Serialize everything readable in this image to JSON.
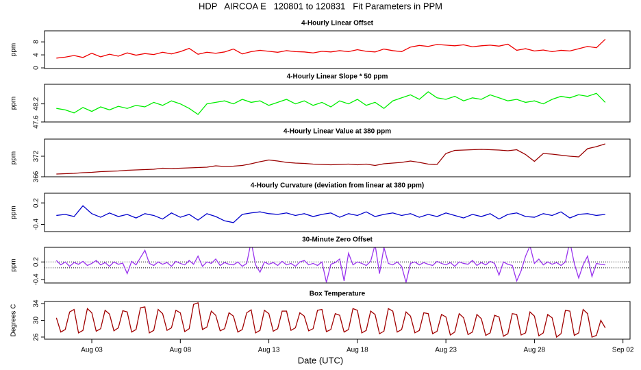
{
  "title": "HDP   AIRCOA E   120801 to 120831   Fit Parameters in PPM",
  "x_label": "Date (UTC)",
  "xlim": [
    0.33,
    33.4
  ],
  "xticks": [
    {
      "value": 3,
      "label": "Aug 03"
    },
    {
      "value": 8,
      "label": "Aug 08"
    },
    {
      "value": 13,
      "label": "Aug 13"
    },
    {
      "value": 18,
      "label": "Aug 18"
    },
    {
      "value": 23,
      "label": "Aug 23"
    },
    {
      "value": 28,
      "label": "Aug 28"
    },
    {
      "value": 33,
      "label": "Sep 02"
    }
  ],
  "chart_data": [
    {
      "type": "line",
      "title": "4-Hourly Linear Offset",
      "y_label": "ppm",
      "color": "#ee0000",
      "ylim": [
        -0.2,
        11.4
      ],
      "yticks": [
        0,
        4,
        8
      ],
      "x": [
        1,
        1.5,
        2,
        2.5,
        3,
        3.5,
        4,
        4.5,
        5,
        5.5,
        6,
        6.5,
        7,
        7.5,
        8,
        8.5,
        9,
        9.5,
        10,
        10.5,
        11,
        11.5,
        12,
        12.5,
        13,
        13.5,
        14,
        14.5,
        15,
        15.5,
        16,
        16.5,
        17,
        17.5,
        18,
        18.5,
        19,
        19.5,
        20,
        20.5,
        21,
        21.5,
        22,
        22.5,
        23,
        23.5,
        24,
        24.5,
        25,
        25.5,
        26,
        26.5,
        27,
        27.5,
        28,
        28.5,
        29,
        29.5,
        30,
        30.5,
        31,
        31.5,
        32
      ],
      "values": [
        3.0,
        3.3,
        3.8,
        3.2,
        4.5,
        3.4,
        4.2,
        3.6,
        4.6,
        3.9,
        4.4,
        4.1,
        4.8,
        4.3,
        5.0,
        6.0,
        4.2,
        4.8,
        4.5,
        4.9,
        5.8,
        4.3,
        5.0,
        5.4,
        5.1,
        4.8,
        5.3,
        5.0,
        4.9,
        4.6,
        5.1,
        4.9,
        5.3,
        5.0,
        5.6,
        5.1,
        4.9,
        5.8,
        5.3,
        5.0,
        6.4,
        6.9,
        6.6,
        7.2,
        7.0,
        6.8,
        7.1,
        6.5,
        6.8,
        7.0,
        6.7,
        7.3,
        5.4,
        5.9,
        5.2,
        5.5,
        5.0,
        5.4,
        5.2,
        5.9,
        6.6,
        6.2,
        8.8
      ]
    },
    {
      "type": "line",
      "title": "4-Hourly Linear Slope * 50 ppm",
      "y_label": "ppm",
      "color": "#00ee00",
      "ylim": [
        47.6,
        48.85
      ],
      "yticks": [
        47.6,
        48.2
      ],
      "x": [
        1,
        1.5,
        2,
        2.5,
        3,
        3.5,
        4,
        4.5,
        5,
        5.5,
        6,
        6.5,
        7,
        7.5,
        8,
        8.5,
        9,
        9.5,
        10,
        10.5,
        11,
        11.5,
        12,
        12.5,
        13,
        13.5,
        14,
        14.5,
        15,
        15.5,
        16,
        16.5,
        17,
        17.5,
        18,
        18.5,
        19,
        19.5,
        20,
        20.5,
        21,
        21.5,
        22,
        22.5,
        23,
        23.5,
        24,
        24.5,
        25,
        25.5,
        26,
        26.5,
        27,
        27.5,
        28,
        28.5,
        29,
        29.5,
        30,
        30.5,
        31,
        31.5,
        32
      ],
      "values": [
        48.05,
        48.0,
        47.9,
        48.08,
        47.95,
        48.1,
        48.0,
        48.12,
        48.05,
        48.15,
        48.1,
        48.25,
        48.15,
        48.3,
        48.2,
        48.05,
        47.85,
        48.2,
        48.25,
        48.3,
        48.2,
        48.35,
        48.25,
        48.3,
        48.15,
        48.25,
        48.35,
        48.2,
        48.3,
        48.15,
        48.25,
        48.1,
        48.3,
        48.2,
        48.35,
        48.15,
        48.25,
        48.05,
        48.3,
        48.4,
        48.5,
        48.35,
        48.6,
        48.4,
        48.35,
        48.45,
        48.3,
        48.4,
        48.35,
        48.5,
        48.4,
        48.3,
        48.35,
        48.25,
        48.3,
        48.2,
        48.35,
        48.45,
        48.4,
        48.5,
        48.45,
        48.55,
        48.25
      ]
    },
    {
      "type": "line",
      "title": "4-Hourly Linear Value at 380 ppm",
      "y_label": "ppm",
      "color": "#990000",
      "ylim": [
        366,
        377
      ],
      "yticks": [
        366,
        372
      ],
      "x": [
        1,
        1.5,
        2,
        2.5,
        3,
        3.5,
        4,
        4.5,
        5,
        5.5,
        6,
        6.5,
        7,
        7.5,
        8,
        8.5,
        9,
        9.5,
        10,
        10.5,
        11,
        11.5,
        12,
        12.5,
        13,
        13.5,
        14,
        14.5,
        15,
        15.5,
        16,
        16.5,
        17,
        17.5,
        18,
        18.5,
        19,
        19.5,
        20,
        20.5,
        21,
        21.5,
        22,
        22.5,
        23,
        23.5,
        24,
        24.5,
        25,
        25.5,
        26,
        26.5,
        27,
        27.5,
        28,
        28.5,
        29,
        29.5,
        30,
        30.5,
        31,
        31.5,
        32
      ],
      "values": [
        366.8,
        366.9,
        367.0,
        367.2,
        367.3,
        367.5,
        367.6,
        367.7,
        367.9,
        368.0,
        368.1,
        368.2,
        368.5,
        368.4,
        368.5,
        368.6,
        368.7,
        368.8,
        369.2,
        369.0,
        369.1,
        369.3,
        369.8,
        370.4,
        370.9,
        370.6,
        370.2,
        370.0,
        369.9,
        369.7,
        369.6,
        369.5,
        369.6,
        369.7,
        369.5,
        369.7,
        369.3,
        369.8,
        370.0,
        370.2,
        370.6,
        370.2,
        369.7,
        369.6,
        372.8,
        373.7,
        373.8,
        373.9,
        374.0,
        373.9,
        373.8,
        373.6,
        373.9,
        372.5,
        370.5,
        372.8,
        372.6,
        372.3,
        372.0,
        371.8,
        374.2,
        374.8,
        375.6
      ]
    },
    {
      "type": "line",
      "title": "4-Hourly Curvature (deviation from linear at 380 ppm)",
      "y_label": "ppm",
      "color": "#0000cc",
      "ylim": [
        -0.6,
        0.47
      ],
      "yticks": [
        -0.4,
        0.2
      ],
      "x": [
        1,
        1.5,
        2,
        2.5,
        3,
        3.5,
        4,
        4.5,
        5,
        5.5,
        6,
        6.5,
        7,
        7.5,
        8,
        8.5,
        9,
        9.5,
        10,
        10.5,
        11,
        11.5,
        12,
        12.5,
        13,
        13.5,
        14,
        14.5,
        15,
        15.5,
        16,
        16.5,
        17,
        17.5,
        18,
        18.5,
        19,
        19.5,
        20,
        20.5,
        21,
        21.5,
        22,
        22.5,
        23,
        23.5,
        24,
        24.5,
        25,
        25.5,
        26,
        26.5,
        27,
        27.5,
        28,
        28.5,
        29,
        29.5,
        30,
        30.5,
        31,
        31.5,
        32
      ],
      "values": [
        -0.15,
        -0.12,
        -0.18,
        0.12,
        -0.1,
        -0.2,
        -0.08,
        -0.18,
        -0.12,
        -0.22,
        -0.1,
        -0.15,
        -0.25,
        -0.08,
        -0.2,
        -0.12,
        -0.28,
        -0.1,
        -0.18,
        -0.3,
        -0.35,
        -0.12,
        -0.08,
        -0.05,
        -0.1,
        -0.12,
        -0.08,
        -0.15,
        -0.1,
        -0.18,
        -0.12,
        -0.08,
        -0.2,
        -0.1,
        -0.15,
        -0.05,
        -0.18,
        -0.12,
        -0.08,
        -0.15,
        -0.1,
        -0.2,
        -0.12,
        -0.18,
        -0.08,
        -0.15,
        -0.22,
        -0.12,
        -0.18,
        -0.1,
        -0.25,
        -0.12,
        -0.08,
        -0.18,
        -0.2,
        -0.1,
        -0.15,
        -0.05,
        -0.22,
        -0.12,
        -0.1,
        -0.15,
        -0.12
      ]
    },
    {
      "type": "line",
      "title": "30-Minute Zero Offset",
      "y_label": "ppm",
      "color": "#9933ee",
      "ylim": [
        -0.52,
        0.7
      ],
      "yticks": [
        -0.4,
        0.2
      ],
      "hlines": [
        0.2,
        0.0
      ],
      "x": [
        1,
        1.25,
        1.5,
        1.75,
        2,
        2.25,
        2.5,
        2.75,
        3,
        3.25,
        3.5,
        3.75,
        4,
        4.25,
        4.5,
        4.75,
        5,
        5.25,
        5.5,
        5.75,
        6,
        6.25,
        6.5,
        6.75,
        7,
        7.25,
        7.5,
        7.75,
        8,
        8.25,
        8.5,
        8.75,
        9,
        9.25,
        9.5,
        9.75,
        10,
        10.25,
        10.5,
        10.75,
        11,
        11.25,
        11.5,
        11.75,
        12,
        12.25,
        12.5,
        12.75,
        13,
        13.25,
        13.5,
        13.75,
        14,
        14.25,
        14.5,
        14.75,
        15,
        15.25,
        15.5,
        15.75,
        16,
        16.25,
        16.5,
        16.75,
        17,
        17.25,
        17.5,
        17.75,
        18,
        18.25,
        18.5,
        18.75,
        19,
        19.25,
        19.5,
        19.75,
        20,
        20.25,
        20.5,
        20.75,
        21,
        21.25,
        21.5,
        21.75,
        22,
        22.25,
        22.5,
        22.75,
        23,
        23.25,
        23.5,
        23.75,
        24,
        24.25,
        24.5,
        24.75,
        25,
        25.25,
        25.5,
        25.75,
        26,
        26.25,
        26.5,
        26.75,
        27,
        27.25,
        27.5,
        27.75,
        28,
        28.25,
        28.5,
        28.75,
        29,
        29.25,
        29.5,
        29.75,
        30,
        30.25,
        30.5,
        30.75,
        31,
        31.25,
        31.5,
        31.75,
        32
      ],
      "values": [
        0.25,
        0.1,
        0.2,
        0.05,
        0.18,
        0.12,
        0.22,
        0.08,
        0.15,
        0.25,
        0.1,
        0.18,
        0.05,
        0.2,
        0.12,
        0.16,
        -0.2,
        0.22,
        0.1,
        0.35,
        0.6,
        0.15,
        0.08,
        0.2,
        0.12,
        0.18,
        0.05,
        0.22,
        0.15,
        0.1,
        0.25,
        0.12,
        0.4,
        0.05,
        0.2,
        0.15,
        0.3,
        0.08,
        0.18,
        0.12,
        0.1,
        0.2,
        0.05,
        0.15,
        0.9,
        0.1,
        -0.15,
        0.2,
        0.12,
        0.18,
        0.08,
        0.22,
        0.1,
        0.15,
        0.05,
        0.2,
        0.25,
        0.1,
        0.15,
        0.08,
        0.2,
        -0.5,
        0.12,
        0.18,
        0.3,
        -0.45,
        0.5,
        0.1,
        0.2,
        0.15,
        0.08,
        0.22,
        0.8,
        -0.2,
        0.7,
        0.15,
        0.1,
        0.2,
        0.05,
        -0.5,
        0.15,
        0.2,
        0.1,
        0.18,
        0.12,
        0.08,
        0.22,
        0.15,
        0.1,
        0.18,
        0.05,
        0.2,
        0.15,
        0.12,
        0.25,
        0.08,
        0.18,
        0.1,
        0.22,
        0.15,
        -0.25,
        0.2,
        0.12,
        0.08,
        -0.45,
        -0.1,
        0.4,
        0.75,
        0.15,
        0.3,
        0.1,
        0.2,
        0.12,
        0.18,
        0.08,
        0.2,
        0.9,
        0.15,
        -0.35,
        0.1,
        0.4,
        -0.3,
        0.15,
        0.12,
        0.1
      ]
    },
    {
      "type": "line",
      "title": "Box Temperature",
      "y_label": "Degrees C",
      "color": "#a00000",
      "ylim": [
        25.5,
        34.5
      ],
      "yticks": [
        26,
        30,
        34
      ],
      "x": [
        1,
        1.25,
        1.5,
        1.75,
        2,
        2.25,
        2.5,
        2.75,
        3,
        3.25,
        3.5,
        3.75,
        4,
        4.25,
        4.5,
        4.75,
        5,
        5.25,
        5.5,
        5.75,
        6,
        6.25,
        6.5,
        6.75,
        7,
        7.25,
        7.5,
        7.75,
        8,
        8.25,
        8.5,
        8.75,
        9,
        9.25,
        9.5,
        9.75,
        10,
        10.25,
        10.5,
        10.75,
        11,
        11.25,
        11.5,
        11.75,
        12,
        12.25,
        12.5,
        12.75,
        13,
        13.25,
        13.5,
        13.75,
        14,
        14.25,
        14.5,
        14.75,
        15,
        15.25,
        15.5,
        15.75,
        16,
        16.25,
        16.5,
        16.75,
        17,
        17.25,
        17.5,
        17.75,
        18,
        18.25,
        18.5,
        18.75,
        19,
        19.25,
        19.5,
        19.75,
        20,
        20.25,
        20.5,
        20.75,
        21,
        21.25,
        21.5,
        21.75,
        22,
        22.25,
        22.5,
        22.75,
        23,
        23.25,
        23.5,
        23.75,
        24,
        24.25,
        24.5,
        24.75,
        25,
        25.25,
        25.5,
        25.75,
        26,
        26.25,
        26.5,
        26.75,
        27,
        27.25,
        27.5,
        27.75,
        28,
        28.25,
        28.5,
        28.75,
        29,
        29.25,
        29.5,
        29.75,
        30,
        30.25,
        30.5,
        30.75,
        31,
        31.25,
        31.5,
        31.75,
        32
      ],
      "values": [
        30.6,
        27.2,
        27.8,
        32.0,
        32.6,
        27.0,
        27.6,
        32.8,
        31.8,
        27.4,
        28.0,
        32.4,
        31.5,
        27.5,
        28.2,
        32.3,
        32.0,
        27.2,
        27.8,
        33.0,
        33.2,
        27.0,
        27.6,
        32.6,
        31.6,
        27.6,
        28.2,
        32.4,
        31.8,
        27.3,
        28.0,
        33.8,
        34.2,
        27.8,
        28.4,
        32.2,
        31.2,
        27.5,
        28.0,
        31.8,
        31.0,
        27.2,
        27.8,
        31.8,
        32.5,
        27.0,
        27.6,
        32.4,
        31.6,
        27.4,
        28.0,
        32.2,
        32.2,
        27.6,
        28.2,
        31.8,
        31.0,
        27.5,
        28.0,
        32.4,
        32.6,
        27.3,
        27.8,
        31.6,
        31.2,
        27.2,
        27.8,
        32.8,
        32.4,
        27.0,
        27.6,
        32.2,
        31.4,
        26.8,
        27.4,
        32.8,
        32.2,
        27.2,
        27.8,
        32.0,
        31.0,
        27.0,
        27.6,
        31.8,
        31.6,
        26.8,
        27.4,
        31.4,
        30.8,
        26.5,
        27.2,
        31.6,
        30.6,
        26.6,
        27.2,
        31.4,
        30.4,
        26.4,
        27.0,
        31.2,
        30.8,
        26.2,
        26.8,
        31.6,
        31.4,
        26.5,
        27.0,
        32.0,
        31.0,
        26.3,
        27.0,
        31.4,
        30.6,
        26.0,
        26.8,
        32.4,
        32.2,
        26.4,
        27.0,
        32.6,
        31.6,
        26.0,
        26.4,
        30.0,
        28.2
      ]
    }
  ]
}
